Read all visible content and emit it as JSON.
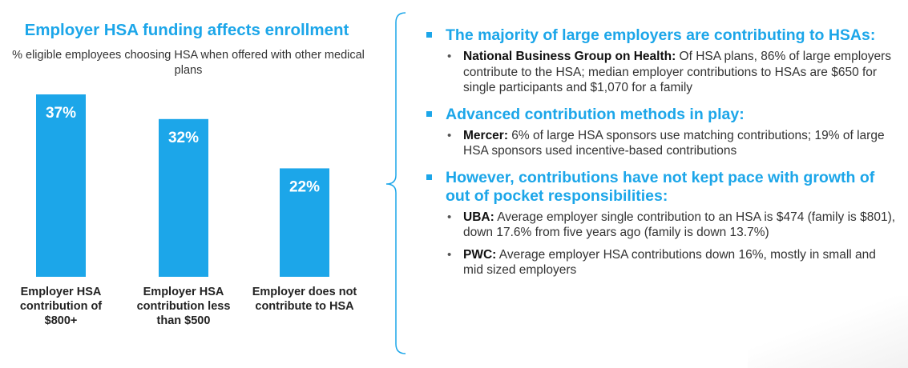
{
  "chart_data": {
    "type": "bar",
    "title": "Employer HSA funding affects enrollment",
    "subtitle": "% eligible employees choosing HSA when offered with other medical plans",
    "categories": [
      "Employer HSA contribution of $800+",
      "Employer HSA contribution less than $500",
      "Employer does not contribute to HSA"
    ],
    "values": [
      37,
      32,
      22
    ],
    "value_labels": [
      "37%",
      "32%",
      "22%"
    ],
    "ylim": [
      0,
      37
    ],
    "xlabel": "",
    "ylabel": "",
    "grid": false,
    "color": "#1ca6e9"
  },
  "bullets": [
    {
      "heading": "The majority of large employers are contributing to HSAs:",
      "items": [
        {
          "source": "National Business Group on Health:",
          "text": " Of HSA plans, 86% of large employers contribute to the HSA; median employer contributions to HSAs are $650 for single participants and $1,070 for a family"
        }
      ]
    },
    {
      "heading": "Advanced contribution methods in play:",
      "items": [
        {
          "source": "Mercer:",
          "text": " 6% of large HSA sponsors use matching contributions; 19% of large HSA sponsors used incentive-based contributions"
        }
      ]
    },
    {
      "heading": "However, contributions have not kept pace with growth of out of pocket responsibilities:",
      "items": [
        {
          "source": "UBA:",
          "text": " Average employer single contribution to an HSA is $474 (family is $801), down 17.6% from five years ago (family is down 13.7%)"
        },
        {
          "source": "PWC:",
          "text": " Average employer HSA contributions down 16%, mostly in small and mid sized employers"
        }
      ]
    }
  ]
}
